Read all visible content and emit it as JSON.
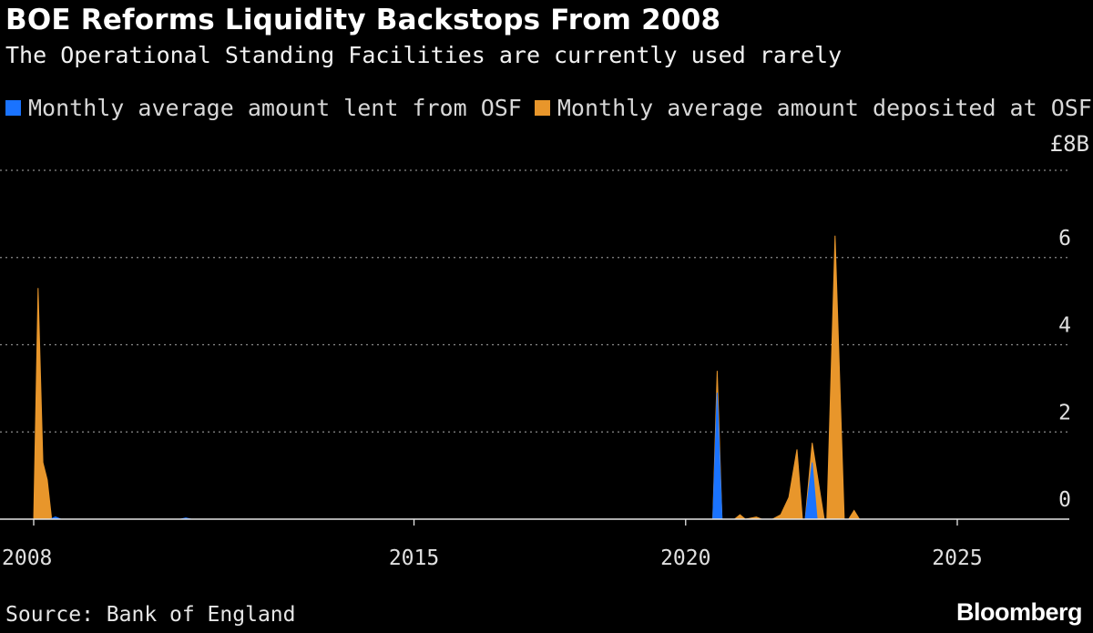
{
  "chart_data": {
    "type": "area",
    "title": "BOE Reforms Liquidity Backstops From 2008",
    "subtitle": "The Operational Standing Facilities are currently used rarely",
    "unit_label": "£8B",
    "ylim": [
      0,
      8
    ],
    "y_ticks": [
      0,
      2,
      4,
      6
    ],
    "xlim": [
      2008.0,
      2026.9
    ],
    "x_ticks": [
      2008,
      2015,
      2020,
      2025
    ],
    "series": [
      {
        "name": "Monthly average amount lent from OSF",
        "color": "#1a73ff",
        "points": [
          [
            2008.0,
            0
          ],
          [
            2008.3,
            0
          ],
          [
            2008.4,
            0.05
          ],
          [
            2008.5,
            0
          ],
          [
            2010.7,
            0
          ],
          [
            2010.8,
            0.03
          ],
          [
            2010.9,
            0
          ],
          [
            2020.5,
            0
          ],
          [
            2020.58,
            2.9
          ],
          [
            2020.67,
            0
          ],
          [
            2022.2,
            0
          ],
          [
            2022.33,
            1.3
          ],
          [
            2022.42,
            0
          ],
          [
            2026.9,
            0
          ]
        ]
      },
      {
        "name": "Monthly average amount deposited at OSF",
        "color": "#e8962b",
        "points": [
          [
            2008.0,
            0
          ],
          [
            2008.08,
            5.3
          ],
          [
            2008.17,
            1.3
          ],
          [
            2008.25,
            0.9
          ],
          [
            2008.33,
            0
          ],
          [
            2020.5,
            0
          ],
          [
            2020.58,
            3.4
          ],
          [
            2020.67,
            0
          ],
          [
            2020.9,
            0
          ],
          [
            2021.0,
            0.1
          ],
          [
            2021.1,
            0
          ],
          [
            2021.3,
            0.05
          ],
          [
            2021.4,
            0
          ],
          [
            2021.6,
            0
          ],
          [
            2021.75,
            0.1
          ],
          [
            2021.9,
            0.5
          ],
          [
            2022.05,
            1.6
          ],
          [
            2022.15,
            0
          ],
          [
            2022.2,
            0
          ],
          [
            2022.33,
            1.75
          ],
          [
            2022.55,
            0
          ],
          [
            2022.6,
            0
          ],
          [
            2022.75,
            6.5
          ],
          [
            2022.92,
            0
          ],
          [
            2023.0,
            0
          ],
          [
            2023.1,
            0.2
          ],
          [
            2023.2,
            0
          ],
          [
            2026.9,
            0
          ]
        ]
      }
    ]
  },
  "source": "Source: Bank of England",
  "brand": "Bloomberg"
}
